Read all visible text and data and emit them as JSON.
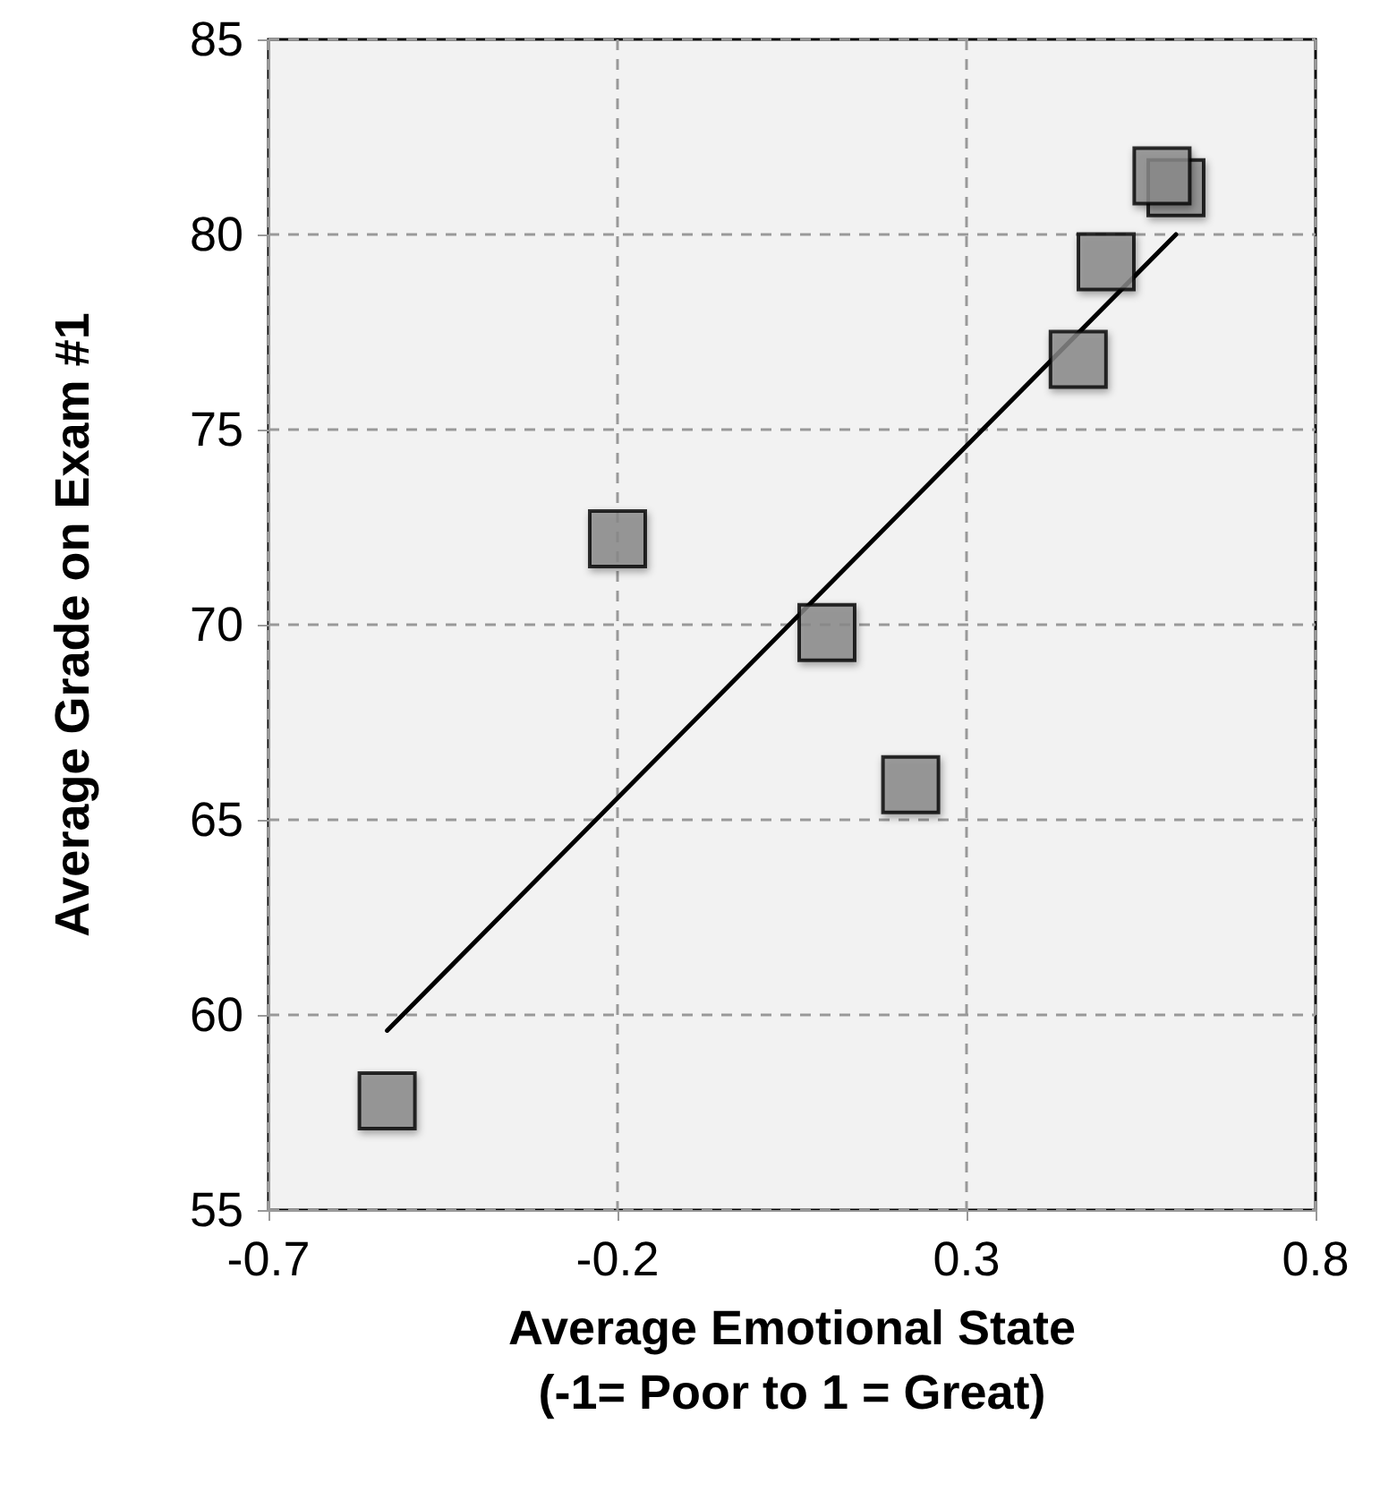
{
  "chart_data": {
    "type": "scatter",
    "xlabel": "Average Emotional State\n(-1= Poor to 1 = Great)",
    "ylabel": "Average Grade on Exam #1",
    "series": [
      {
        "color": "#8c8c8c",
        "marker": "square",
        "x": [
          -0.53,
          -0.2,
          0.1,
          0.22,
          0.46,
          0.5,
          0.6,
          0.58
        ],
        "values": [
          57.8,
          72.2,
          69.8,
          65.9,
          76.8,
          79.3,
          81.2,
          81.5
        ]
      },
      {
        "type": "line",
        "color": "#000000",
        "marker": "none",
        "line_style": "solid",
        "x": [
          -0.53,
          0.6
        ],
        "values": [
          59.6,
          80.0
        ]
      }
    ],
    "xlim": [
      -0.7,
      0.8
    ],
    "xticks": [
      -0.7,
      -0.2,
      0.3,
      0.8
    ],
    "ylim": [
      55,
      85
    ],
    "yticks": [
      55,
      60,
      65,
      70,
      75,
      80,
      85
    ],
    "grid": true
  }
}
